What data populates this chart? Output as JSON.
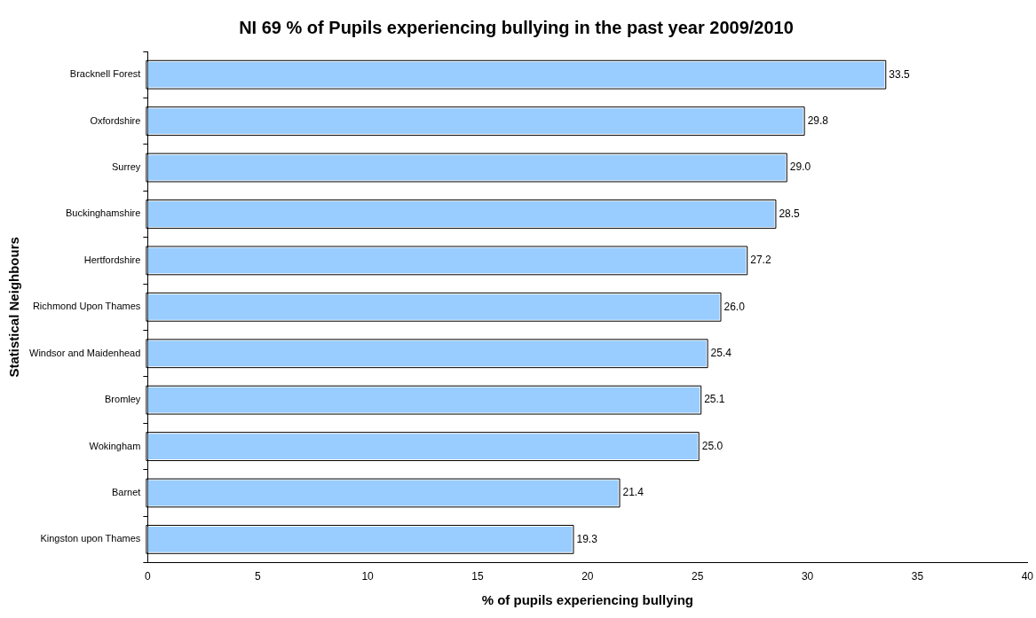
{
  "chart_data": {
    "type": "bar",
    "orientation": "horizontal",
    "title": "NI 69 % of Pupils experiencing bullying in the past year 2009/2010",
    "xlabel": "% of pupils experiencing bullying",
    "ylabel": "Statistical Neighbours",
    "categories": [
      "Bracknell Forest",
      "Oxfordshire",
      "Surrey",
      "Buckinghamshire",
      "Hertfordshire",
      "Richmond Upon Thames",
      "Windsor and Maidenhead",
      "Bromley",
      "Wokingham",
      "Barnet",
      "Kingston upon Thames"
    ],
    "values": [
      33.5,
      29.8,
      29.0,
      28.5,
      27.2,
      26.0,
      25.4,
      25.1,
      25.0,
      21.4,
      19.3
    ],
    "value_labels": [
      "33.5",
      "29.8",
      "29.0",
      "28.5",
      "27.2",
      "26.0",
      "25.4",
      "25.1",
      "25.0",
      "21.4",
      "19.3"
    ],
    "color": "#99ccff",
    "xlim": [
      0,
      40
    ],
    "xticks": [
      0,
      5,
      10,
      15,
      20,
      25,
      30,
      35,
      40
    ],
    "grid": false,
    "legend": false
  }
}
